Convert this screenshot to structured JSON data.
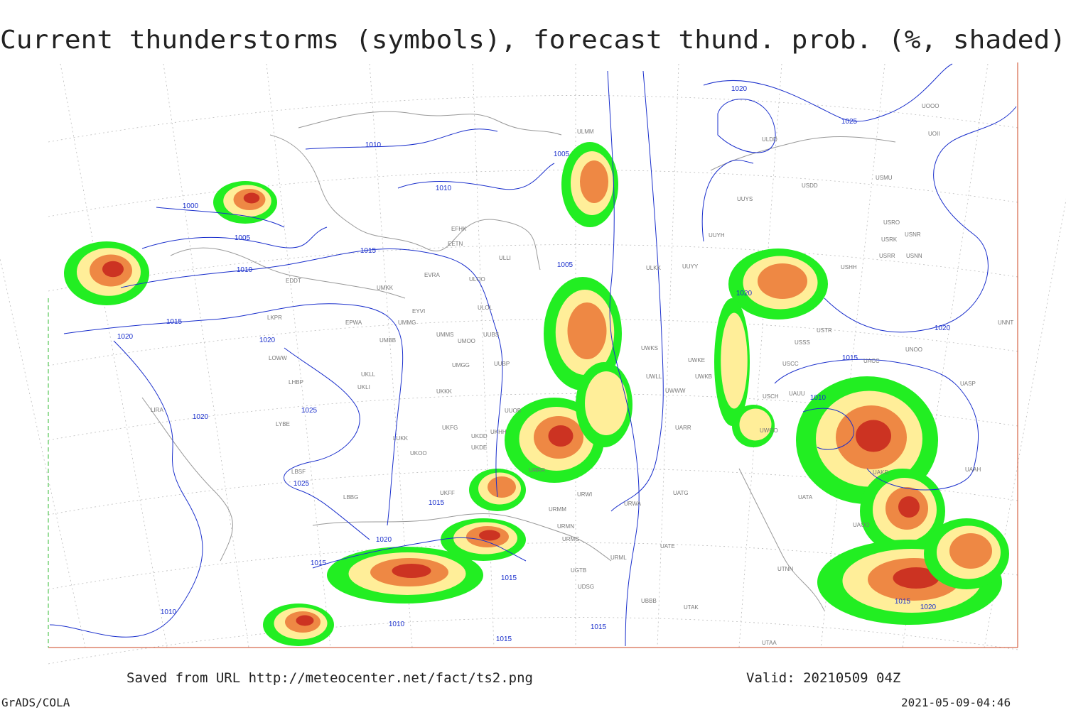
{
  "title": "Current thunderstorms (symbols), forecast thund. prob. (%, shaded)",
  "footer": {
    "saved": "Saved from URL http://meteocenter.net/fact/ts2.png",
    "valid": "Valid: 20210509 04Z",
    "software": "GrADS/COLA",
    "timestamp": "2021-05-09-04:46"
  },
  "isobar_labels": [
    1010,
    1000,
    1005,
    1010,
    1015,
    1010,
    1005,
    1005,
    1015,
    1020,
    1020,
    1025,
    1020,
    1025,
    1015,
    1020,
    1015,
    1015,
    1015,
    1010,
    1010,
    1015,
    1020,
    1025,
    1020,
    1020,
    1015,
    1010,
    1015,
    1020
  ],
  "stations": [
    "ULMM",
    "ULDD",
    "UOOO",
    "UOII",
    "USDD",
    "USMU",
    "UUYS",
    "USRO",
    "USRK",
    "USNR",
    "USRR",
    "USNN",
    "UUYH",
    "EFHK",
    "EETN",
    "ULLI",
    "ULKK",
    "UUYY",
    "USHH",
    "EVRA",
    "ULOO",
    "EDDT",
    "UMKK",
    "ULOL",
    "EYVI",
    "LKPR",
    "EPWA",
    "UMMG",
    "UMMS",
    "UMOO",
    "UUBS",
    "USTR",
    "UNNT",
    "UMBB",
    "USSS",
    "UWKS",
    "UNOO",
    "LOWW",
    "UWKE",
    "UUBP",
    "USCC",
    "UACC",
    "UASP",
    "UWLL",
    "UWKB",
    "UMGG",
    "UKLL",
    "LHBP",
    "UKLI",
    "UKKK",
    "UWWW",
    "UAUU",
    "USCH",
    "LIRA",
    "UUOB",
    "LYBE",
    "UKHH",
    "UKFG",
    "UARR",
    "UWOO",
    "UKDD",
    "LUKK",
    "UKDE",
    "UKOO",
    "LBSF",
    "URRR",
    "UAKD",
    "UAAH",
    "UATG",
    "UKFF",
    "LBBG",
    "URWI",
    "URWA",
    "UATA",
    "URMM",
    "UAOO",
    "URMN",
    "UATE",
    "URMG",
    "URML",
    "UTNN",
    "UGTB",
    "UDSG",
    "UBBB",
    "UTAK",
    "UTAA"
  ]
}
